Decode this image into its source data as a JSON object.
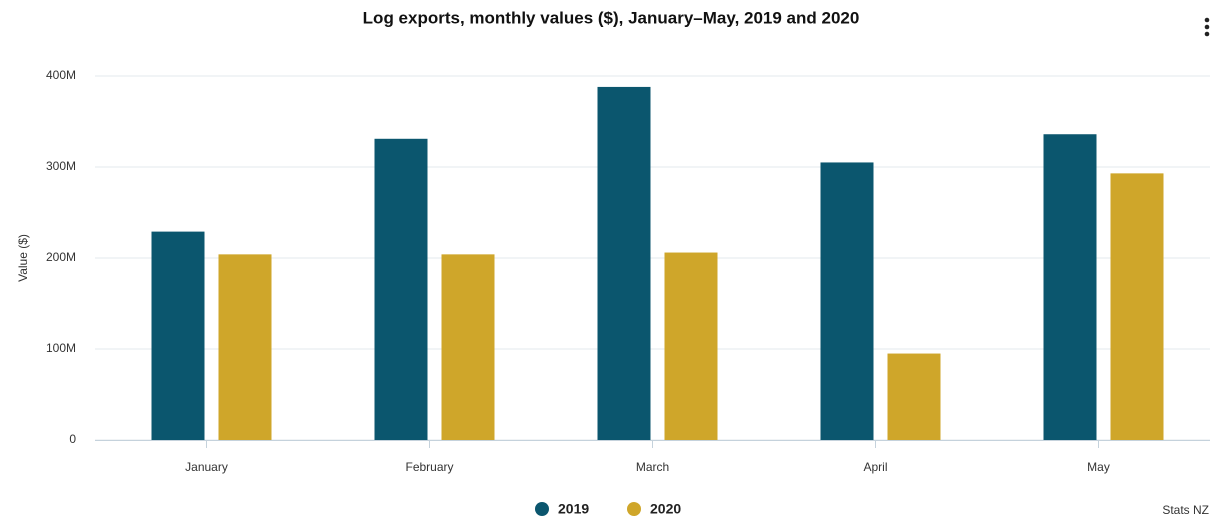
{
  "chart_data": {
    "type": "bar",
    "title": "Log exports, monthly values ($), January–May, 2019 and 2020",
    "y_label": "Value ($)",
    "source": "Stats NZ",
    "categories": [
      "January",
      "February",
      "March",
      "April",
      "May"
    ],
    "series": [
      {
        "name": "2019",
        "color": "#0b566e",
        "values": [
          229000000,
          331000000,
          388000000,
          305000000,
          336000000
        ]
      },
      {
        "name": "2020",
        "color": "#cfa62a",
        "values": [
          204000000,
          204000000,
          206000000,
          95000000,
          293000000
        ]
      }
    ],
    "ylim": [
      0,
      400000000
    ],
    "yticks": [
      0,
      {
        "value": 100000000,
        "label": "100M"
      },
      {
        "value": 200000000,
        "label": "200M"
      },
      {
        "value": 300000000,
        "label": "300M"
      },
      {
        "value": 400000000,
        "label": "400M"
      }
    ],
    "grid": true
  }
}
